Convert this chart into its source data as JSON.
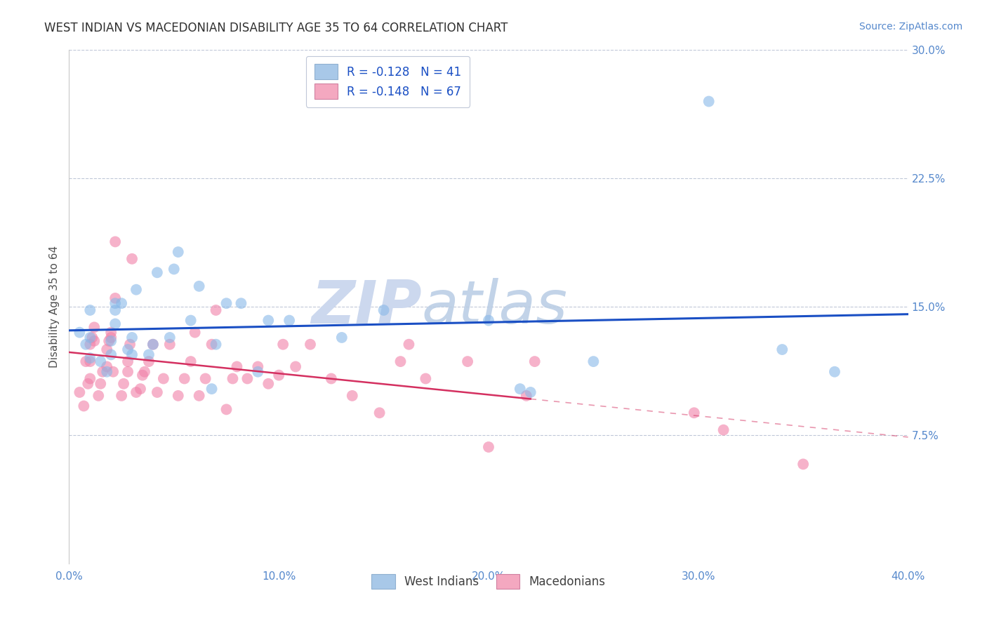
{
  "title": "WEST INDIAN VS MACEDONIAN DISABILITY AGE 35 TO 64 CORRELATION CHART",
  "source": "Source: ZipAtlas.com",
  "ylabel": "Disability Age 35 to 64",
  "xlim": [
    0.0,
    0.4
  ],
  "ylim": [
    0.0,
    0.3
  ],
  "xticks": [
    0.0,
    0.1,
    0.2,
    0.3,
    0.4
  ],
  "yticks": [
    0.075,
    0.15,
    0.225,
    0.3
  ],
  "xticklabels": [
    "0.0%",
    "10.0%",
    "20.0%",
    "30.0%",
    "40.0%"
  ],
  "yticklabels": [
    "7.5%",
    "15.0%",
    "22.5%",
    "30.0%"
  ],
  "legend_label1": "R = -0.128   N = 41",
  "legend_label2": "R = -0.148   N = 67",
  "legend_color1": "#a8c8e8",
  "legend_color2": "#f4a8c0",
  "trendline1_color": "#1a4fc4",
  "trendline2_color": "#d43060",
  "dot_color1": "#88b8e8",
  "dot_color2": "#f080a8",
  "background_color": "#ffffff",
  "watermark_zip": "ZIP",
  "watermark_atlas": "atlas",
  "watermark_color": "#ccd8ee",
  "title_color": "#303030",
  "axis_label_color": "#5588cc",
  "ylabel_color": "#505050",
  "west_indians_x": [
    0.005,
    0.008,
    0.01,
    0.01,
    0.01,
    0.015,
    0.018,
    0.02,
    0.02,
    0.022,
    0.022,
    0.022,
    0.025,
    0.028,
    0.03,
    0.03,
    0.032,
    0.038,
    0.04,
    0.042,
    0.048,
    0.05,
    0.052,
    0.058,
    0.062,
    0.068,
    0.07,
    0.075,
    0.082,
    0.09,
    0.095,
    0.105,
    0.13,
    0.15,
    0.2,
    0.215,
    0.22,
    0.25,
    0.305,
    0.34,
    0.365
  ],
  "west_indians_y": [
    0.135,
    0.128,
    0.12,
    0.132,
    0.148,
    0.118,
    0.112,
    0.122,
    0.13,
    0.14,
    0.148,
    0.152,
    0.152,
    0.125,
    0.122,
    0.132,
    0.16,
    0.122,
    0.128,
    0.17,
    0.132,
    0.172,
    0.182,
    0.142,
    0.162,
    0.102,
    0.128,
    0.152,
    0.152,
    0.112,
    0.142,
    0.142,
    0.132,
    0.148,
    0.142,
    0.102,
    0.1,
    0.118,
    0.27,
    0.125,
    0.112
  ],
  "macedonians_x": [
    0.005,
    0.007,
    0.008,
    0.009,
    0.01,
    0.01,
    0.01,
    0.011,
    0.012,
    0.012,
    0.014,
    0.015,
    0.016,
    0.018,
    0.018,
    0.019,
    0.02,
    0.02,
    0.021,
    0.022,
    0.022,
    0.025,
    0.026,
    0.028,
    0.028,
    0.029,
    0.03,
    0.032,
    0.034,
    0.035,
    0.036,
    0.038,
    0.04,
    0.042,
    0.045,
    0.048,
    0.052,
    0.055,
    0.058,
    0.06,
    0.062,
    0.065,
    0.068,
    0.07,
    0.075,
    0.078,
    0.08,
    0.085,
    0.09,
    0.095,
    0.1,
    0.102,
    0.108,
    0.115,
    0.125,
    0.135,
    0.148,
    0.158,
    0.162,
    0.17,
    0.19,
    0.2,
    0.218,
    0.222,
    0.298,
    0.312,
    0.35
  ],
  "macedonians_y": [
    0.1,
    0.092,
    0.118,
    0.105,
    0.108,
    0.118,
    0.128,
    0.132,
    0.13,
    0.138,
    0.098,
    0.105,
    0.112,
    0.115,
    0.125,
    0.13,
    0.132,
    0.135,
    0.112,
    0.155,
    0.188,
    0.098,
    0.105,
    0.112,
    0.118,
    0.128,
    0.178,
    0.1,
    0.102,
    0.11,
    0.112,
    0.118,
    0.128,
    0.1,
    0.108,
    0.128,
    0.098,
    0.108,
    0.118,
    0.135,
    0.098,
    0.108,
    0.128,
    0.148,
    0.09,
    0.108,
    0.115,
    0.108,
    0.115,
    0.105,
    0.11,
    0.128,
    0.115,
    0.128,
    0.108,
    0.098,
    0.088,
    0.118,
    0.128,
    0.108,
    0.118,
    0.068,
    0.098,
    0.118,
    0.088,
    0.078,
    0.058
  ]
}
